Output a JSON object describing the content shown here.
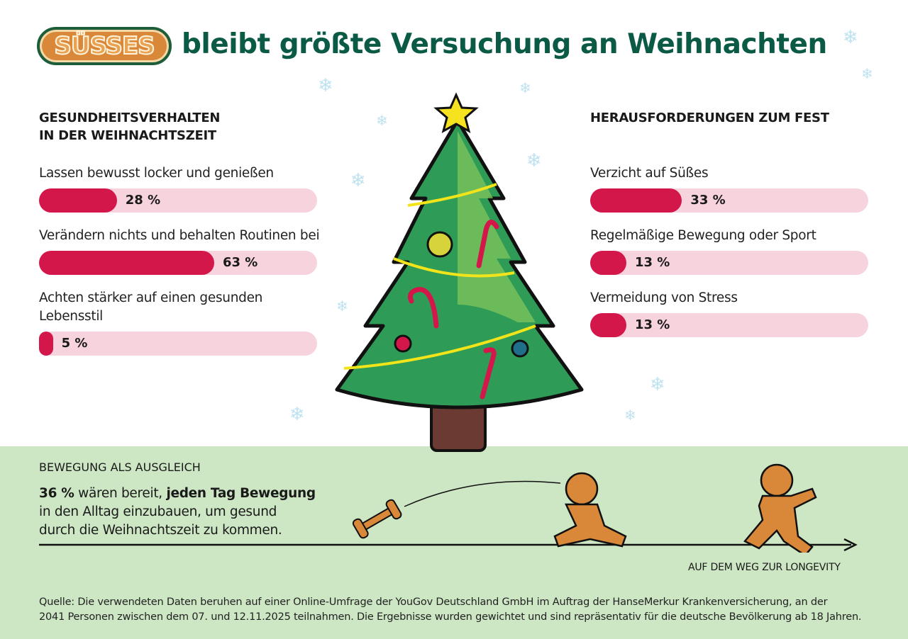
{
  "header": {
    "logo_text": "SÜSSES",
    "title": "bleibt größte Versuchung an Weihnachten"
  },
  "colors": {
    "bar_fill": "#d4174a",
    "bar_track": "#f7d3de",
    "title": "#0b5a45",
    "band": "#cde6c4"
  },
  "chart_data": [
    {
      "type": "bar",
      "orientation": "horizontal",
      "title": "GESUNDHEITSVERHALTEN IN DER WEIHNACHTSZEIT",
      "title_lines": [
        "GESUNDHEITSVERHALTEN",
        "IN DER WEIHNACHTSZEIT"
      ],
      "xlim": [
        0,
        100
      ],
      "categories": [
        "Lassen bewusst locker und genießen",
        "Verändern nichts und behalten Routinen bei",
        "Achten stärker auf einen gesunden Lebensstil"
      ],
      "category_lines": [
        [
          "Lassen bewusst locker und genießen"
        ],
        [
          "Verändern nichts und behalten Routinen bei"
        ],
        [
          "Achten stärker auf einen gesunden",
          "Lebensstil"
        ]
      ],
      "values": [
        28,
        63,
        5
      ],
      "labels": [
        "28 %",
        "63 %",
        "5 %"
      ]
    },
    {
      "type": "bar",
      "orientation": "horizontal",
      "title": "HERAUSFORDERUNGEN ZUM FEST",
      "title_lines": [
        "HERAUSFORDERUNGEN ZUM FEST"
      ],
      "xlim": [
        0,
        100
      ],
      "categories": [
        "Verzicht auf Süßes",
        "Regelmäßige Bewegung oder Sport",
        "Vermeidung von Stress"
      ],
      "category_lines": [
        [
          "Verzicht auf Süßes"
        ],
        [
          "Regelmäßige Bewegung oder Sport"
        ],
        [
          "Vermeidung von Stress"
        ]
      ],
      "values": [
        33,
        13,
        13
      ],
      "labels": [
        "33 %",
        "13 %",
        "13 %"
      ]
    }
  ],
  "movement": {
    "heading": "BEWEGUNG ALS AUSGLEICH",
    "pct": "36 %",
    "text1": " wären bereit, ",
    "bold": "jeden Tag Bewegung",
    "line2": "in den Alltag einzubauen, um gesund",
    "line3": "durch die Weihnachtszeit zu kommen.",
    "axis_label": "AUF DEM WEG ZUR LONGEVITY"
  },
  "footer": {
    "line1": "Quelle: Die verwendeten Daten beruhen auf einer Online-Umfrage der YouGov Deutschland GmbH im Auftrag der HanseMerkur Krankenversicherung, an der",
    "line2": "2041 Personen zwischen dem 07. und 12.11.2025 teilnahmen. Die Ergebnisse wurden gewichtet und sind repräsentativ für die deutsche Bevölkerung ab 18 Jahren."
  }
}
